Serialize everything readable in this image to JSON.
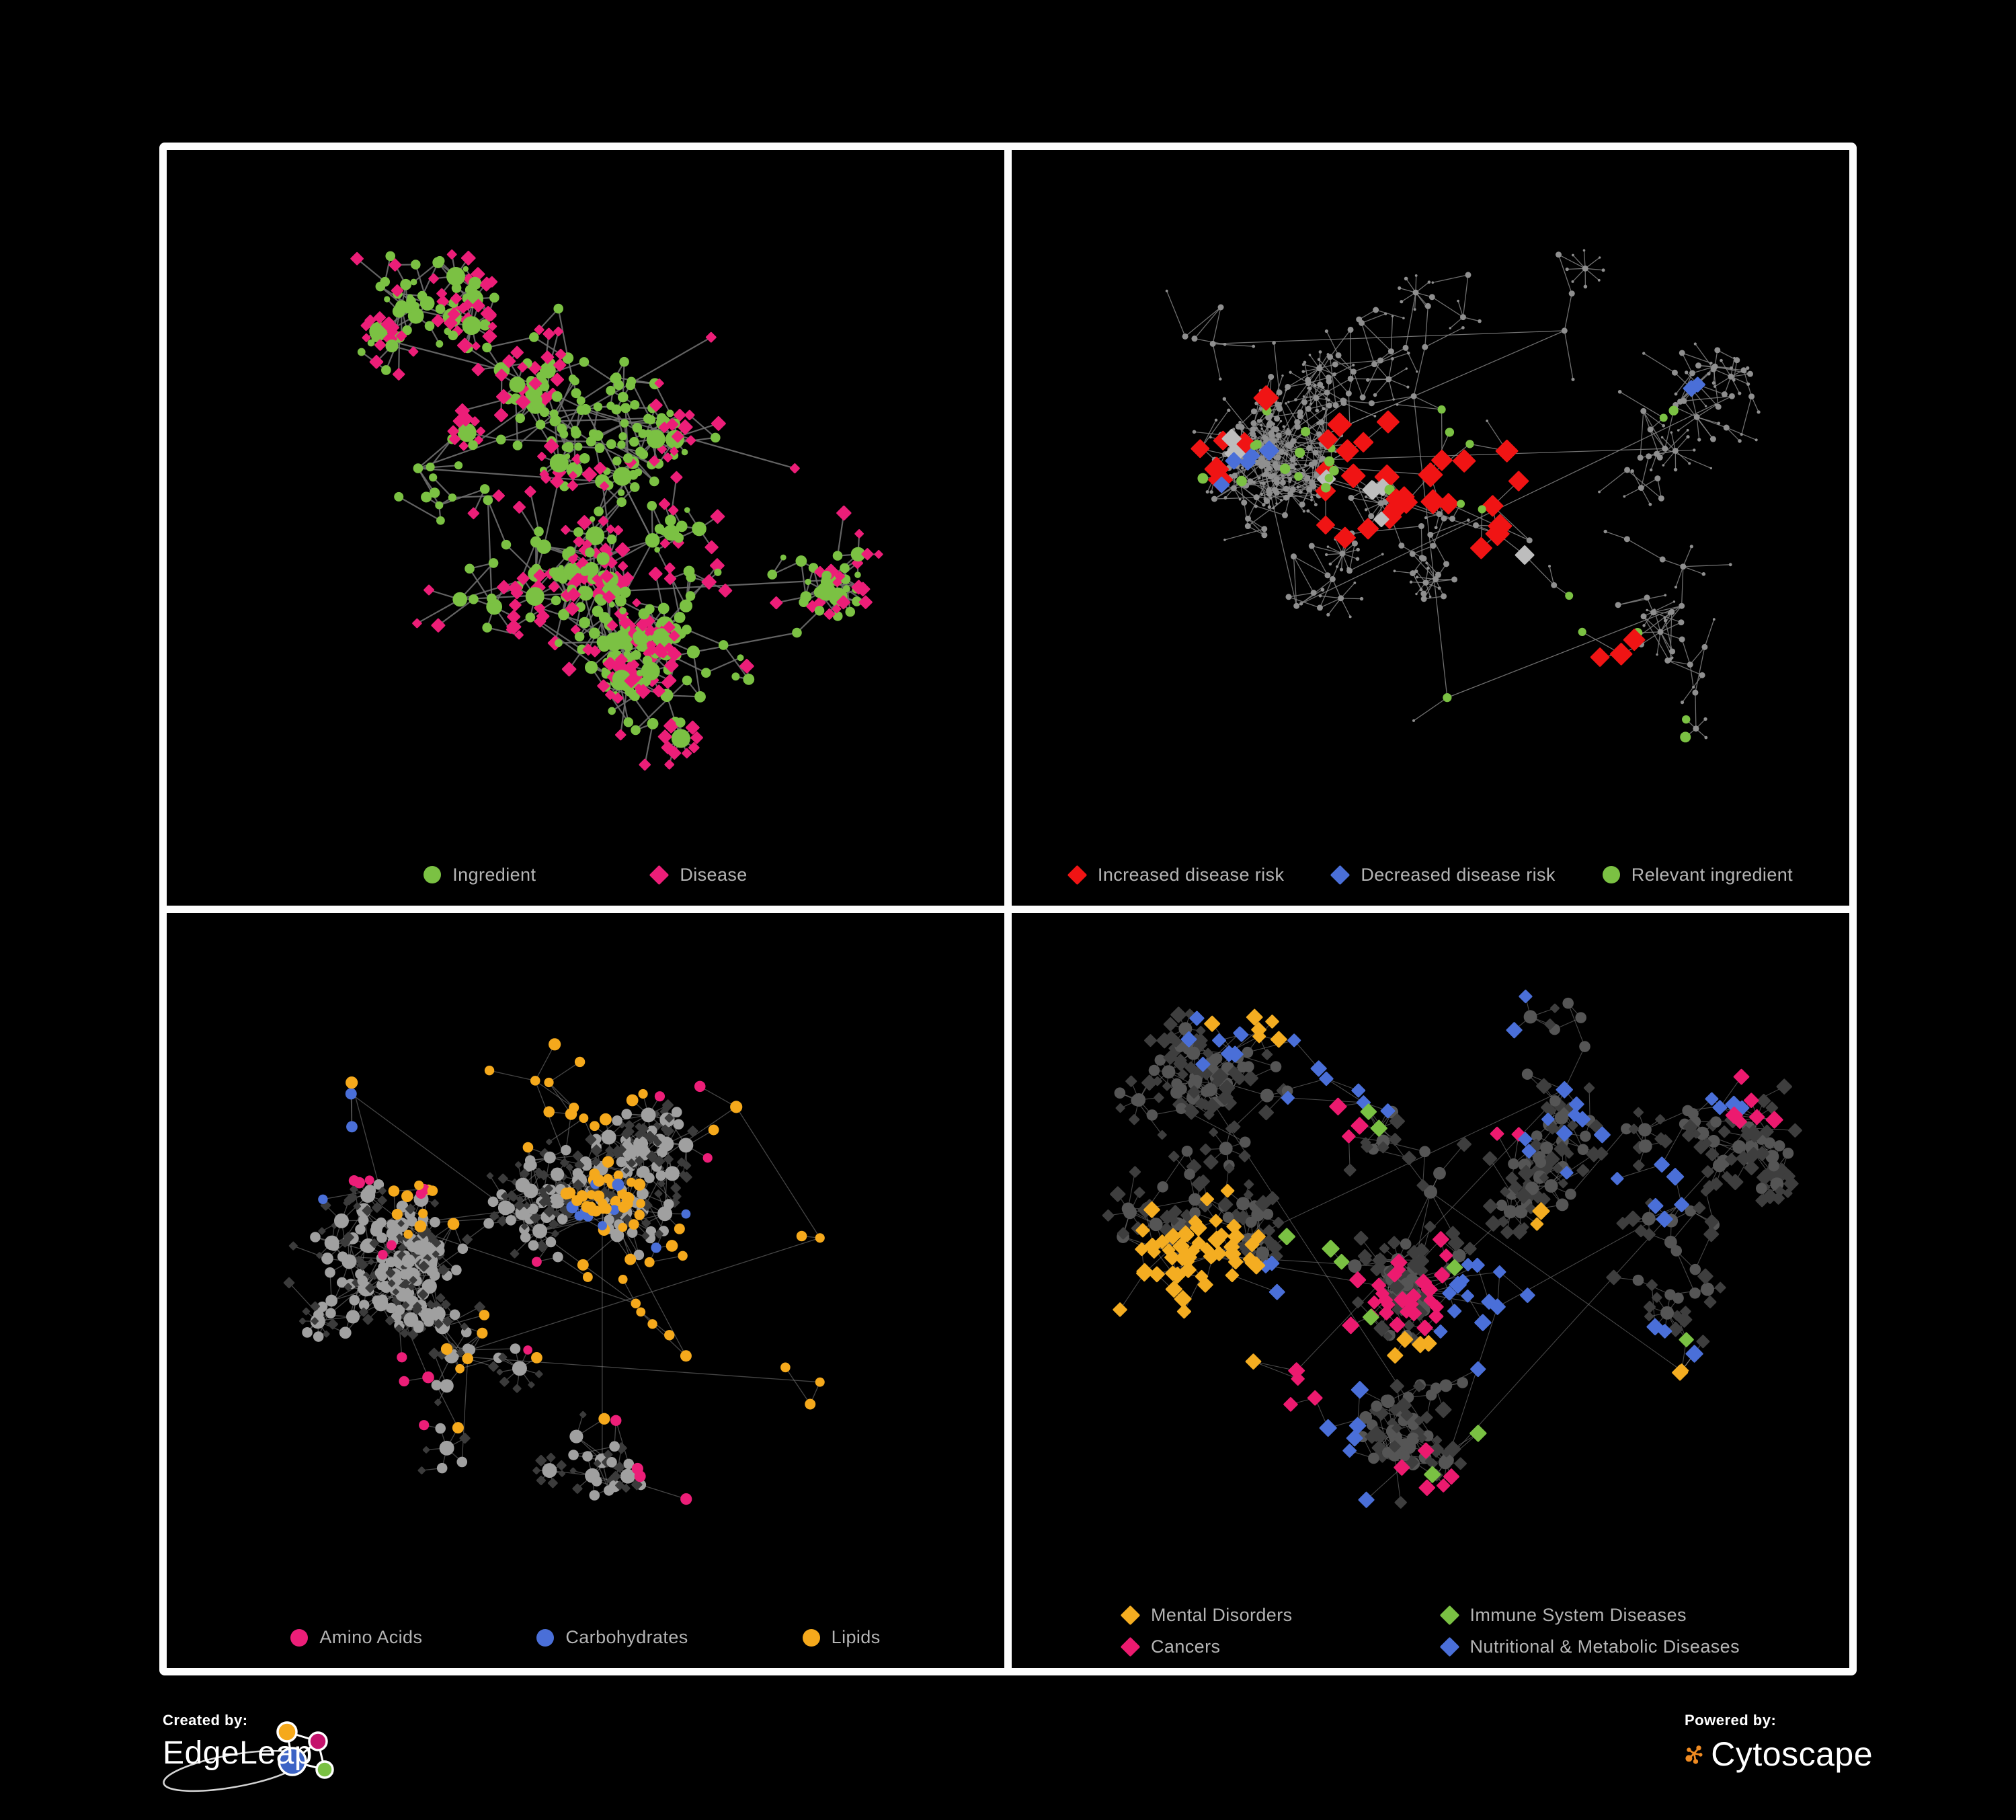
{
  "branding": {
    "created_by_label": "Created by:",
    "created_by_name": "EdgeLeap",
    "powered_by_label": "Powered by:",
    "powered_by_name": "Cytoscape",
    "cytoscape_orange": "#ef8b22",
    "edgeleap_node_colors": {
      "orange": "#f5a91c",
      "magenta": "#c4136c",
      "blue": "#3c63c5",
      "green": "#7ac143"
    }
  },
  "panels": [
    {
      "id": "ingredient-disease",
      "legend": [
        {
          "shape": "circle",
          "color": "#7bc143",
          "label": "Ingredient"
        },
        {
          "shape": "diamond",
          "color": "#ec1e78",
          "label": "Disease"
        }
      ],
      "network": {
        "seed": 7,
        "n": 620,
        "step": 46,
        "hubBias": 0.45,
        "chainProb": 0.3,
        "fanProb": 0.16,
        "extraEdges": 140,
        "areaH": 1010,
        "hubs": [
          [
            0.3,
            0.45
          ],
          [
            0.52,
            0.47
          ],
          [
            0.5,
            0.36
          ],
          [
            0.58,
            0.56
          ],
          [
            0.4,
            0.3
          ],
          [
            0.65,
            0.25
          ],
          [
            0.75,
            0.45
          ],
          [
            0.35,
            0.65
          ],
          [
            0.55,
            0.78
          ],
          [
            0.25,
            0.25
          ],
          [
            0.8,
            0.62
          ],
          [
            0.62,
            0.66
          ]
        ],
        "edgeColor": "#6e6e6e",
        "edgeWidth": 2.2,
        "edgeOpacity": 0.9,
        "internal": {
          "shape": "circle",
          "color": "#7bc143",
          "size": 5,
          "maxSize": 14
        },
        "leaf": {
          "shape": "diamond",
          "color": "#ec1e78",
          "size": 6.5
        },
        "leafAlt": {
          "prob": 0.13,
          "shape": "circle",
          "color": "#7bc143",
          "size": 5
        },
        "highlights": [
          {
            "shape": "circle",
            "color": "#7bc143",
            "size": 7,
            "zones": [
              [
                45,
                0.52,
                0.38,
                0.04
              ],
              [
                10,
                0.27,
                0.46,
                0.02
              ]
            ]
          }
        ]
      }
    },
    {
      "id": "disease-risk",
      "legend": [
        {
          "shape": "diamond",
          "color": "#f01414",
          "label": "Increased disease risk"
        },
        {
          "shape": "diamond",
          "color": "#4a6fd8",
          "label": "Decreased disease risk"
        },
        {
          "shape": "circle",
          "color": "#7bc143",
          "label": "Relevant ingredient"
        }
      ],
      "network": {
        "seed": 13,
        "n": 620,
        "step": 46,
        "hubBias": 0.45,
        "chainProb": 0.32,
        "fanProb": 0.15,
        "extraEdges": 120,
        "areaH": 1010,
        "hubs": [
          [
            0.3,
            0.44
          ],
          [
            0.5,
            0.46
          ],
          [
            0.48,
            0.34
          ],
          [
            0.58,
            0.55
          ],
          [
            0.38,
            0.28
          ],
          [
            0.66,
            0.24
          ],
          [
            0.78,
            0.42
          ],
          [
            0.34,
            0.66
          ],
          [
            0.52,
            0.8
          ],
          [
            0.24,
            0.26
          ],
          [
            0.8,
            0.66
          ],
          [
            0.86,
            0.34
          ]
        ],
        "edgeColor": "#828282",
        "edgeWidth": 1.3,
        "edgeOpacity": 0.85,
        "internal": {
          "shape": "circle",
          "color": "#8f8f8f",
          "size": 2.6,
          "maxSize": 4.5
        },
        "leaf": {
          "shape": "circle",
          "color": "#8f8f8f",
          "size": 2.2
        },
        "highlights": [
          {
            "shape": "diamond",
            "color": "#f01414",
            "size": 12,
            "zones": [
              [
                22,
                0.45,
                0.47,
                0.09
              ],
              [
                5,
                0.25,
                0.44,
                0.05
              ],
              [
                3,
                0.72,
                0.74,
                0.03
              ],
              [
                2,
                0.62,
                0.4,
                0.02
              ],
              [
                1,
                0.31,
                0.33,
                0.01
              ],
              [
                2,
                0.56,
                0.58,
                0.03
              ],
              [
                2,
                0.6,
                0.51,
                0.02
              ]
            ]
          },
          {
            "shape": "diamond",
            "color": "#4a6fd8",
            "size": 10,
            "zones": [
              [
                4,
                0.26,
                0.45,
                0.03
              ],
              [
                2,
                0.82,
                0.33,
                0.012
              ],
              [
                1,
                0.3,
                0.42,
                0.01
              ]
            ]
          },
          {
            "shape": "diamond",
            "color": "#bdbdbd",
            "size": 10,
            "zones": [
              [
                5,
                0.42,
                0.5,
                0.09
              ],
              [
                2,
                0.25,
                0.41,
                0.03
              ],
              [
                1,
                0.59,
                0.59,
                0.01
              ]
            ]
          },
          {
            "shape": "circle",
            "color": "#7bc143",
            "size": 7,
            "zones": [
              [
                13,
                0.33,
                0.43,
                0.09
              ],
              [
                6,
                0.52,
                0.44,
                0.05
              ],
              [
                3,
                0.7,
                0.72,
                0.03
              ],
              [
                2,
                0.78,
                0.36,
                0.02
              ],
              [
                1,
                0.5,
                0.77,
                0.01
              ],
              [
                2,
                0.68,
                0.92,
                0.03
              ],
              [
                1,
                0.13,
                0.47,
                0.01
              ]
            ]
          }
        ]
      }
    },
    {
      "id": "nutrient-classes",
      "legend": [
        {
          "shape": "circle",
          "color": "#ec1e78",
          "label": "Amino Acids"
        },
        {
          "shape": "circle",
          "color": "#4a6fd8",
          "label": "Carbohydrates"
        },
        {
          "shape": "circle",
          "color": "#f5a91c",
          "label": "Lipids"
        }
      ],
      "network": {
        "seed": 21,
        "n": 640,
        "step": 45,
        "hubBias": 0.5,
        "chainProb": 0.3,
        "fanProb": 0.17,
        "extraEdges": 160,
        "areaH": 1010,
        "hubs": [
          [
            0.28,
            0.44
          ],
          [
            0.5,
            0.42
          ],
          [
            0.52,
            0.4
          ],
          [
            0.56,
            0.56
          ],
          [
            0.44,
            0.22
          ],
          [
            0.68,
            0.26
          ],
          [
            0.78,
            0.46
          ],
          [
            0.34,
            0.64
          ],
          [
            0.52,
            0.8
          ],
          [
            0.22,
            0.24
          ],
          [
            0.78,
            0.68
          ],
          [
            0.62,
            0.64
          ]
        ],
        "edgeColor": "#8a8a8a",
        "edgeWidth": 1.3,
        "edgeOpacity": 0.5,
        "internal": {
          "shape": "circle",
          "color": "#a0a0a0",
          "size": 5.5,
          "maxSize": 11
        },
        "leaf": {
          "shape": "diamond",
          "color": "#3b3b3b",
          "size": 5
        },
        "highlights": [
          {
            "shape": "circle",
            "color": "#f5a91c",
            "size": 8,
            "zones": [
              [
                36,
                0.52,
                0.4,
                0.045
              ],
              [
                14,
                0.45,
                0.2,
                0.07
              ],
              [
                10,
                0.3,
                0.4,
                0.06
              ],
              [
                12,
                0.56,
                0.62,
                0.05
              ],
              [
                8,
                0.72,
                0.56,
                0.06
              ],
              [
                6,
                0.35,
                0.63,
                0.08
              ],
              [
                2,
                0.87,
                0.3,
                0.02
              ],
              [
                1,
                0.25,
                0.07,
                0.01
              ]
            ]
          },
          {
            "shape": "circle",
            "color": "#4a6fd8",
            "size": 8,
            "zones": [
              [
                8,
                0.52,
                0.4,
                0.05
              ],
              [
                2,
                0.7,
                0.6,
                0.03
              ],
              [
                2,
                0.3,
                0.08,
                0.03
              ],
              [
                1,
                0.08,
                0.27,
                0.01
              ]
            ]
          },
          {
            "shape": "circle",
            "color": "#ec1e78",
            "size": 8,
            "zones": [
              [
                3,
                0.2,
                0.18,
                0.04
              ],
              [
                2,
                0.3,
                0.27,
                0.02
              ],
              [
                4,
                0.28,
                0.7,
                0.06
              ],
              [
                4,
                0.7,
                0.68,
                0.05
              ],
              [
                2,
                0.92,
                0.3,
                0.02
              ],
              [
                1,
                0.66,
                0.04,
                0.01
              ],
              [
                2,
                0.46,
                0.56,
                0.03
              ],
              [
                2,
                0.25,
                0.48,
                0.02
              ]
            ]
          }
        ]
      }
    },
    {
      "id": "disease-categories",
      "legend_layout": "grid",
      "legend": [
        {
          "shape": "diamond",
          "color": "#f4ad21",
          "label": "Mental Disorders"
        },
        {
          "shape": "diamond",
          "color": "#7ac143",
          "label": "Immune System Diseases"
        },
        {
          "shape": "diamond",
          "color": "#ec1a6f",
          "label": "Cancers"
        },
        {
          "shape": "diamond",
          "color": "#4a6fd8",
          "label": "Nutritional & Metabolic Diseases"
        }
      ],
      "network": {
        "seed": 5,
        "n": 680,
        "step": 44,
        "hubBias": 0.5,
        "chainProb": 0.3,
        "fanProb": 0.18,
        "extraEdges": 170,
        "areaH": 985,
        "hubs": [
          [
            0.24,
            0.5
          ],
          [
            0.48,
            0.52
          ],
          [
            0.5,
            0.4
          ],
          [
            0.58,
            0.58
          ],
          [
            0.42,
            0.26
          ],
          [
            0.66,
            0.24
          ],
          [
            0.8,
            0.42
          ],
          [
            0.34,
            0.68
          ],
          [
            0.52,
            0.82
          ],
          [
            0.22,
            0.22
          ],
          [
            0.8,
            0.68
          ],
          [
            0.88,
            0.3
          ]
        ],
        "edgeColor": "#8e8e8e",
        "edgeWidth": 1.1,
        "edgeOpacity": 0.5,
        "internal": {
          "shape": "circle",
          "color": "#555555",
          "size": 6,
          "maxSize": 10
        },
        "leaf": {
          "shape": "diamond",
          "color": "#3e3e3e",
          "size": 7
        },
        "highlights": [
          {
            "shape": "diamond",
            "color": "#f4ad21",
            "size": 8.5,
            "zones": [
              [
                52,
                0.22,
                0.5,
                0.07
              ],
              [
                6,
                0.3,
                0.13,
                0.05
              ],
              [
                4,
                0.48,
                0.64,
                0.04
              ],
              [
                3,
                0.14,
                0.76,
                0.03
              ],
              [
                2,
                0.62,
                0.45,
                0.02
              ],
              [
                2,
                0.74,
                0.89,
                0.02
              ]
            ]
          },
          {
            "shape": "diamond",
            "color": "#ec1a6f",
            "size": 8.5,
            "zones": [
              [
                28,
                0.47,
                0.56,
                0.07
              ],
              [
                6,
                0.88,
                0.28,
                0.04
              ],
              [
                5,
                0.48,
                0.86,
                0.05
              ],
              [
                4,
                0.28,
                0.74,
                0.04
              ],
              [
                3,
                0.4,
                0.3,
                0.04
              ],
              [
                2,
                0.6,
                0.3,
                0.03
              ]
            ]
          },
          {
            "shape": "diamond",
            "color": "#4a6fd8",
            "size": 8.5,
            "zones": [
              [
                14,
                0.57,
                0.6,
                0.045
              ],
              [
                10,
                0.65,
                0.32,
                0.07
              ],
              [
                8,
                0.25,
                0.15,
                0.06
              ],
              [
                6,
                0.47,
                0.09,
                0.05
              ],
              [
                6,
                0.78,
                0.4,
                0.05
              ],
              [
                5,
                0.3,
                0.64,
                0.05
              ],
              [
                4,
                0.2,
                0.88,
                0.04
              ],
              [
                4,
                0.85,
                0.2,
                0.03
              ],
              [
                3,
                0.38,
                0.26,
                0.03
              ],
              [
                3,
                0.72,
                0.72,
                0.03
              ]
            ]
          },
          {
            "shape": "diamond",
            "color": "#7ac143",
            "size": 8.5,
            "zones": [
              [
                2,
                0.42,
                0.28,
                0.02
              ],
              [
                3,
                0.36,
                0.49,
                0.03
              ],
              [
                1,
                0.56,
                0.54,
                0.01
              ],
              [
                1,
                0.4,
                0.62,
                0.01
              ],
              [
                2,
                0.7,
                0.8,
                0.03
              ],
              [
                1,
                0.49,
                0.86,
                0.01
              ]
            ]
          }
        ]
      }
    }
  ]
}
